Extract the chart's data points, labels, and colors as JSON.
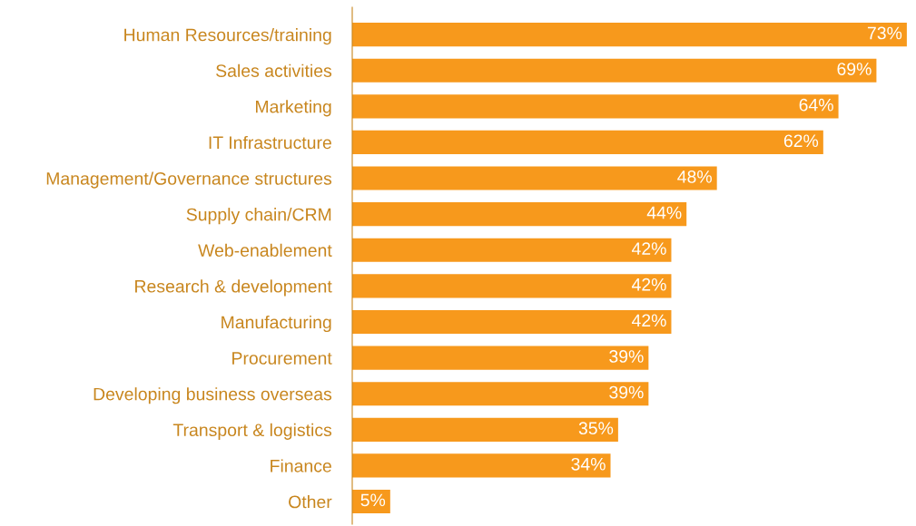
{
  "chart_data": {
    "type": "bar",
    "orientation": "horizontal",
    "categories": [
      "Human Resources/training",
      "Sales activities",
      "Marketing",
      "IT Infrastructure",
      "Management/Governance structures",
      "Supply chain/CRM",
      "Web-enablement",
      "Research & development",
      "Manufacturing",
      "Procurement",
      "Developing business overseas",
      "Transport & logistics",
      "Finance",
      "Other"
    ],
    "values": [
      73,
      69,
      64,
      62,
      48,
      44,
      42,
      42,
      42,
      39,
      39,
      35,
      34,
      5
    ],
    "value_labels": [
      "73%",
      "69%",
      "64%",
      "62%",
      "48%",
      "44%",
      "42%",
      "42%",
      "42%",
      "39%",
      "39%",
      "35%",
      "34%",
      "5%"
    ],
    "color": "#f7991c",
    "tick_labels": "y",
    "grid": false,
    "legend": false
  }
}
